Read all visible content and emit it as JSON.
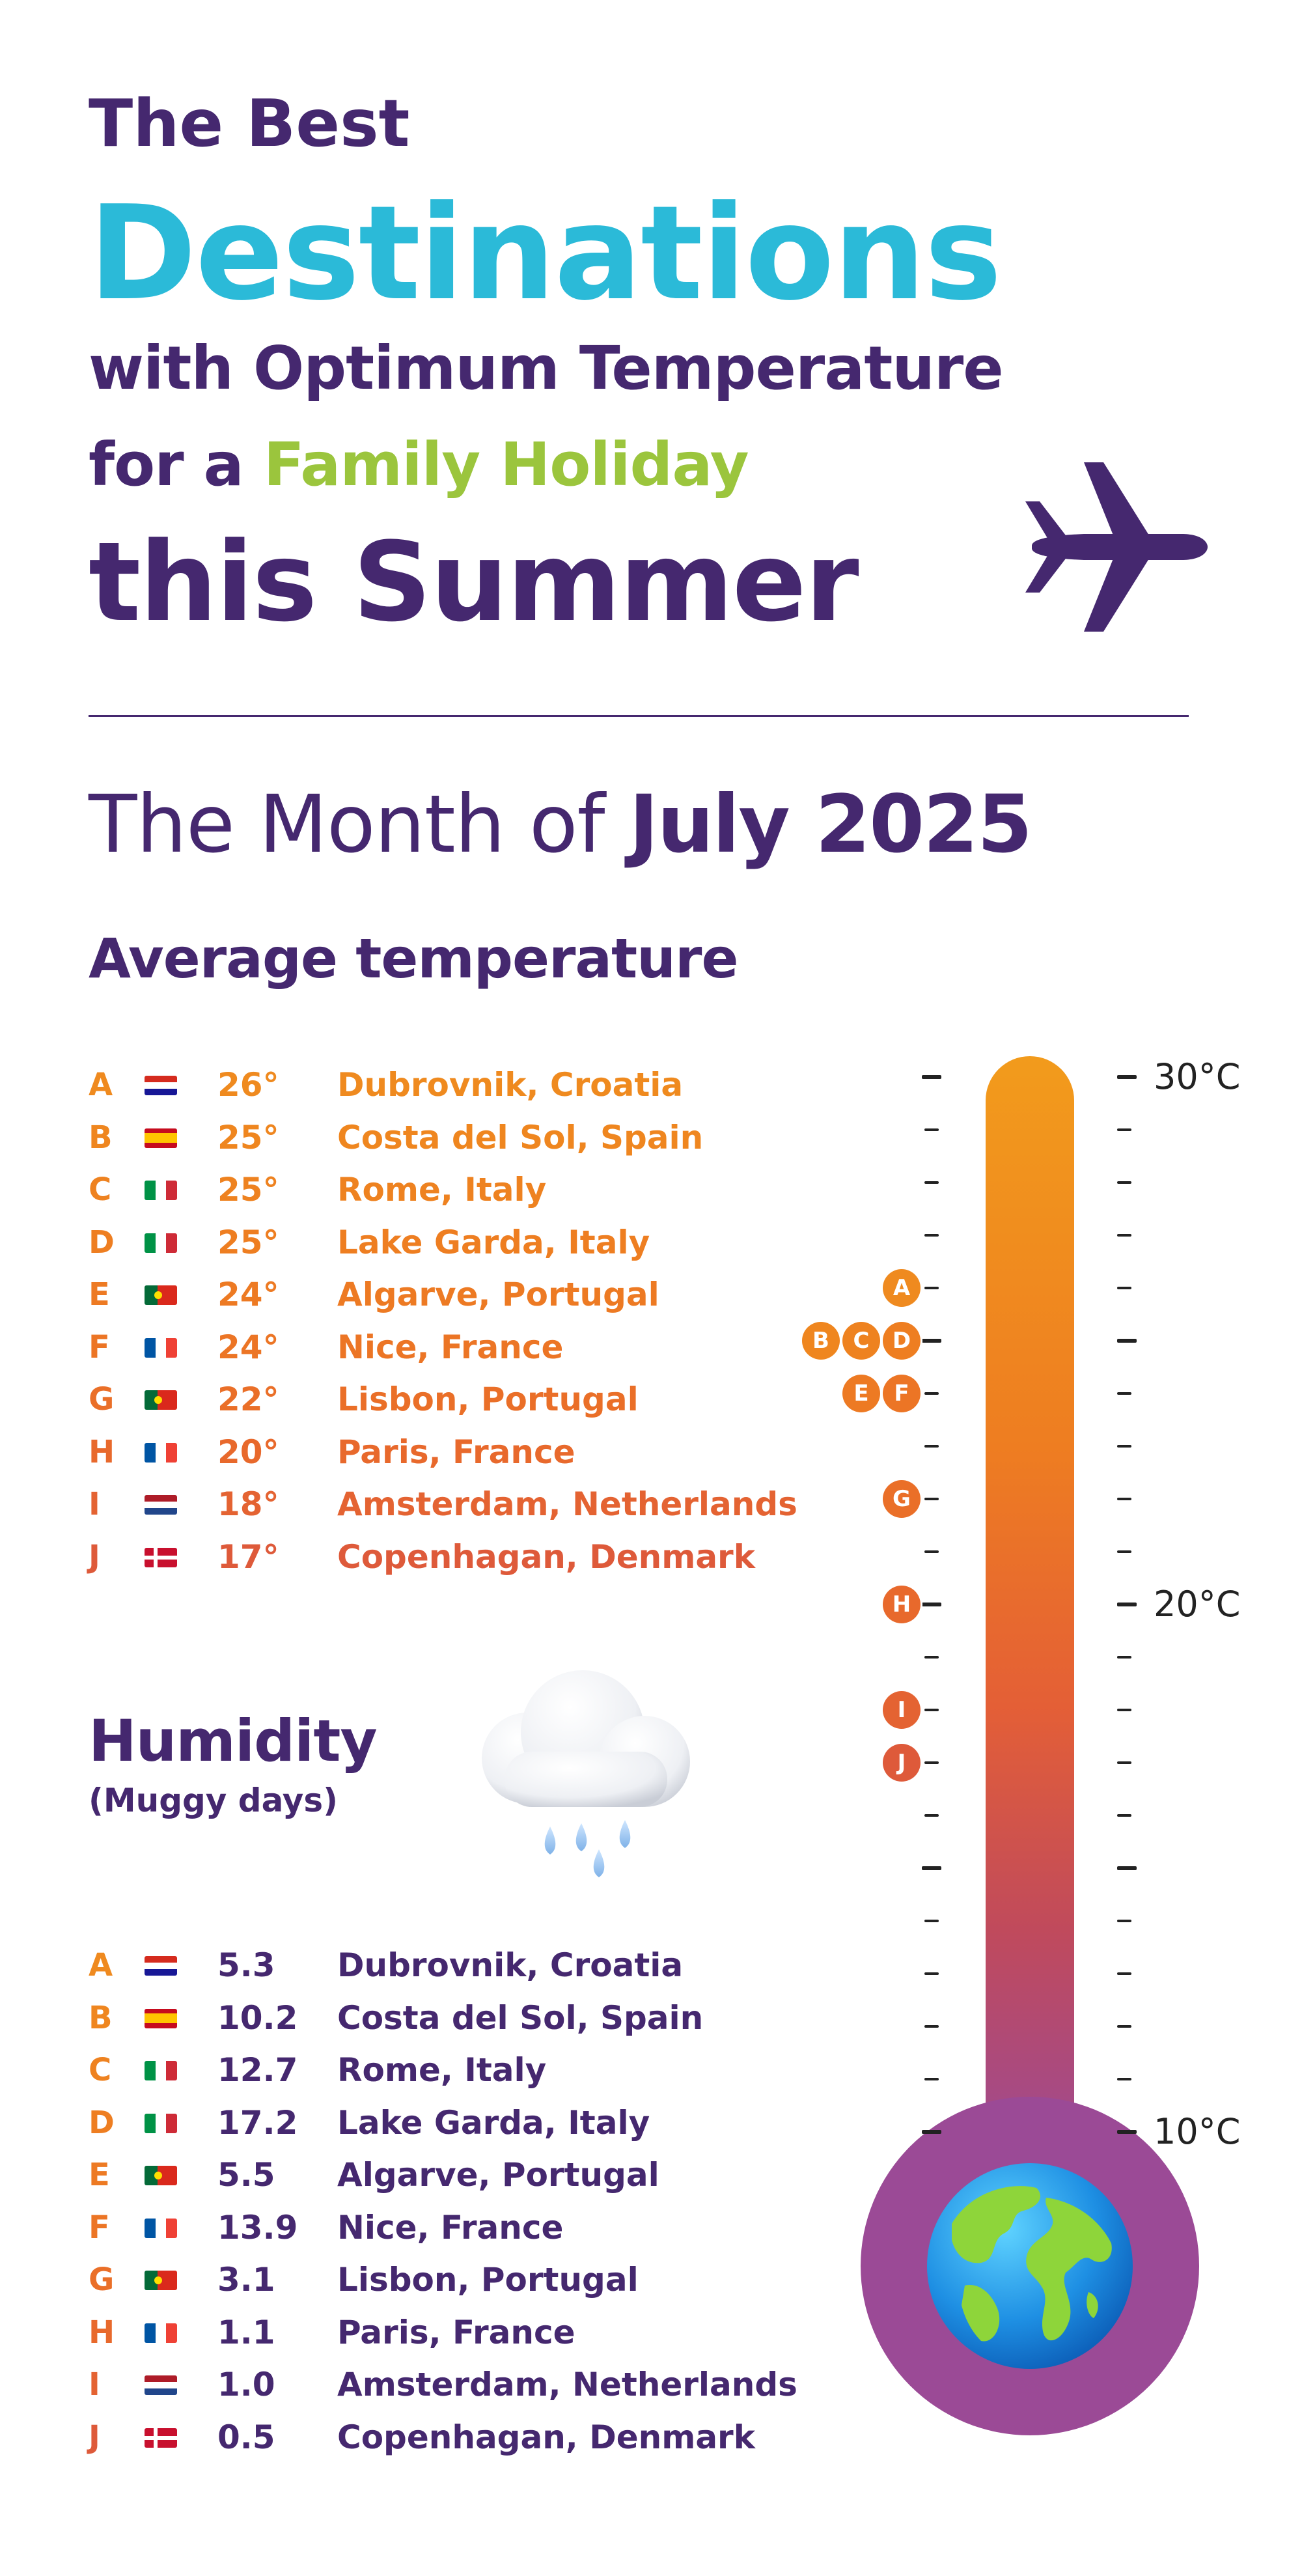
{
  "title": {
    "line1": "The Best",
    "line2": "Destinations",
    "line3": "with Optimum Temperature",
    "line4_prefix": "for a ",
    "line4_accent": "Family Holiday",
    "line5": "this Summer"
  },
  "month": {
    "prefix": "The Month of ",
    "value": "July 2025"
  },
  "average_temperature": {
    "heading": "Average temperature",
    "rows": [
      {
        "letter": "A",
        "flag": "croatia-flag",
        "value": "26°",
        "city": "Dubrovnik, Croatia",
        "color": "#ef8a1f"
      },
      {
        "letter": "B",
        "flag": "spain-flag",
        "value": "25°",
        "city": "Costa del Sol, Spain",
        "color": "#ef861f"
      },
      {
        "letter": "C",
        "flag": "italy-flag",
        "value": "25°",
        "city": "Rome, Italy",
        "color": "#ee8220"
      },
      {
        "letter": "D",
        "flag": "italy-flag",
        "value": "25°",
        "city": "Lake Garda, Italy",
        "color": "#ee7e21"
      },
      {
        "letter": "E",
        "flag": "portugal-flag",
        "value": "24°",
        "city": "Algarve, Portugal",
        "color": "#ed7a23"
      },
      {
        "letter": "F",
        "flag": "france-flag",
        "value": "24°",
        "city": "Nice, France",
        "color": "#ec7525"
      },
      {
        "letter": "G",
        "flag": "portugal-flag",
        "value": "22°",
        "city": "Lisbon, Portugal",
        "color": "#ea6f28"
      },
      {
        "letter": "H",
        "flag": "france-flag",
        "value": "20°",
        "city": "Paris, France",
        "color": "#e8692c"
      },
      {
        "letter": "I",
        "flag": "netherlands-flag",
        "value": "18°",
        "city": "Amsterdam, Netherlands",
        "color": "#e46332"
      },
      {
        "letter": "J",
        "flag": "denmark-flag",
        "value": "17°",
        "city": "Copenhagan, Denmark",
        "color": "#de5a3a"
      }
    ]
  },
  "humidity": {
    "heading": "Humidity",
    "subheading": "(Muggy days)",
    "rows": [
      {
        "letter": "A",
        "flag": "croatia-flag",
        "value": "5.3",
        "city": "Dubrovnik, Croatia",
        "color": "#ef8a1f"
      },
      {
        "letter": "B",
        "flag": "spain-flag",
        "value": "10.2",
        "city": "Costa del Sol, Spain",
        "color": "#ef861f"
      },
      {
        "letter": "C",
        "flag": "italy-flag",
        "value": "12.7",
        "city": "Rome, Italy",
        "color": "#ee8220"
      },
      {
        "letter": "D",
        "flag": "italy-flag",
        "value": "17.2",
        "city": "Lake Garda, Italy",
        "color": "#ee7e21"
      },
      {
        "letter": "E",
        "flag": "portugal-flag",
        "value": "5.5",
        "city": "Algarve, Portugal",
        "color": "#ed7a23"
      },
      {
        "letter": "F",
        "flag": "france-flag",
        "value": "13.9",
        "city": "Nice, France",
        "color": "#ec7525"
      },
      {
        "letter": "G",
        "flag": "portugal-flag",
        "value": "3.1",
        "city": "Lisbon, Portugal",
        "color": "#ea6f28"
      },
      {
        "letter": "H",
        "flag": "france-flag",
        "value": "1.1",
        "city": "Paris, France",
        "color": "#e8692c"
      },
      {
        "letter": "I",
        "flag": "netherlands-flag",
        "value": "1.0",
        "city": "Amsterdam, Netherlands",
        "color": "#e46332"
      },
      {
        "letter": "J",
        "flag": "denmark-flag",
        "value": "0.5",
        "city": "Copenhagan, Denmark",
        "color": "#de5a3a"
      }
    ]
  },
  "thermometer": {
    "scale_labels": [
      "30°C",
      "20°C",
      "10°C"
    ],
    "markers": [
      {
        "letter": "A",
        "temp": 26,
        "color": "#ef8a1f"
      },
      {
        "letter": "B",
        "temp": 25,
        "color": "#ef861f"
      },
      {
        "letter": "C",
        "temp": 25,
        "color": "#ee8220"
      },
      {
        "letter": "D",
        "temp": 25,
        "color": "#ee7e21"
      },
      {
        "letter": "E",
        "temp": 24,
        "color": "#ed7a23"
      },
      {
        "letter": "F",
        "temp": 24,
        "color": "#ec7525"
      },
      {
        "letter": "G",
        "temp": 22,
        "color": "#ea6f28"
      },
      {
        "letter": "H",
        "temp": 20,
        "color": "#e8692c"
      },
      {
        "letter": "I",
        "temp": 18,
        "color": "#e46332"
      },
      {
        "letter": "J",
        "temp": 17,
        "color": "#de5a3a"
      }
    ]
  },
  "colors": {
    "purple": "#45286f",
    "cyan": "#2bbad8",
    "green": "#9bc53d",
    "bulb": "#9b4a96"
  },
  "icons": {
    "plane": "airplane-icon",
    "cloud": "rain-cloud-icon",
    "globe": "earth-globe-icon"
  }
}
